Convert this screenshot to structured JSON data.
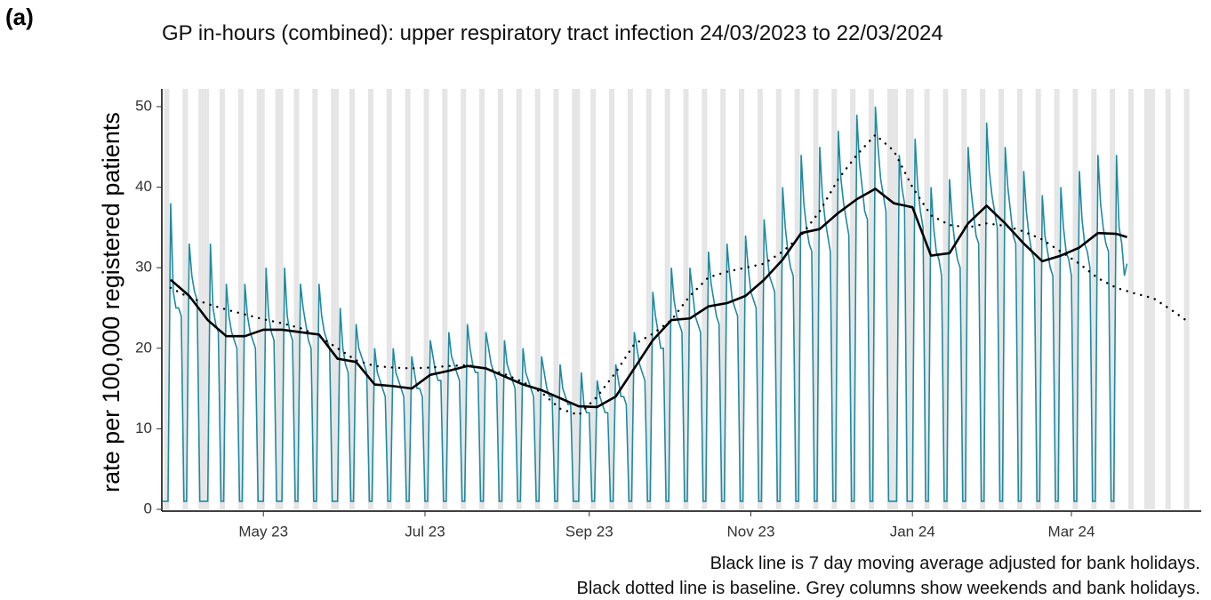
{
  "chart_data": {
    "type": "line",
    "panel_label": "(a)",
    "title": "GP in-hours (combined): upper respiratory tract infection 24/03/2023 to 22/03/2024",
    "y_label": "rate per 100,000 registered patients",
    "notes": [
      "Black line is 7 day moving average adjusted for bank holidays.",
      "Black dotted line is baseline. Grey columns show weekends and bank holidays."
    ],
    "xlim": [
      "2023-03-24",
      "2024-04-19"
    ],
    "xticks": [
      {
        "value": "2023-05-01",
        "label": "May 23"
      },
      {
        "value": "2023-07-01",
        "label": "Jul 23"
      },
      {
        "value": "2023-09-01",
        "label": "Sep 23"
      },
      {
        "value": "2023-11-01",
        "label": "Nov 23"
      },
      {
        "value": "2024-01-01",
        "label": "Jan 24"
      },
      {
        "value": "2024-03-01",
        "label": "Mar 24"
      }
    ],
    "ylim": [
      0,
      52.2
    ],
    "yticks": [
      0,
      10,
      20,
      30,
      40,
      50
    ],
    "shade_weekends": true,
    "shade_color": "#e5e5e5",
    "bank_holidays": [
      "2023-04-07",
      "2023-04-10",
      "2023-05-01",
      "2023-05-08",
      "2023-05-29",
      "2023-08-28",
      "2023-12-25",
      "2023-12-26",
      "2024-01-01",
      "2024-03-29",
      "2024-04-01"
    ],
    "x": [
      "2023-03-24",
      "2023-03-25",
      "2023-03-26",
      "2023-03-27",
      "2023-03-28",
      "2023-03-29",
      "2023-03-30",
      "2023-03-31",
      "2023-04-01",
      "2023-04-02",
      "2023-04-03",
      "2023-04-04",
      "2023-04-05",
      "2023-04-06",
      "2023-04-07",
      "2023-04-08",
      "2023-04-09",
      "2023-04-10",
      "2023-04-11",
      "2023-04-12",
      "2023-04-13",
      "2023-04-14",
      "2023-04-15",
      "2023-04-16",
      "2023-04-17",
      "2023-04-18",
      "2023-04-19",
      "2023-04-20",
      "2023-04-21",
      "2023-04-22",
      "2023-04-23",
      "2023-04-24",
      "2023-04-25",
      "2023-04-26",
      "2023-04-27",
      "2023-04-28",
      "2023-04-29",
      "2023-04-30",
      "2023-05-01",
      "2023-05-02",
      "2023-05-03",
      "2023-05-04",
      "2023-05-05",
      "2023-05-06",
      "2023-05-07",
      "2023-05-08",
      "2023-05-09",
      "2023-05-10",
      "2023-05-11",
      "2023-05-12",
      "2023-05-13",
      "2023-05-14",
      "2023-05-15",
      "2023-05-16",
      "2023-05-17",
      "2023-05-18",
      "2023-05-19",
      "2023-05-20",
      "2023-05-21",
      "2023-05-22",
      "2023-05-23",
      "2023-05-24",
      "2023-05-25",
      "2023-05-26",
      "2023-05-27",
      "2023-05-28",
      "2023-05-29",
      "2023-05-30",
      "2023-05-31",
      "2023-06-01",
      "2023-06-02",
      "2023-06-03",
      "2023-06-04",
      "2023-06-05",
      "2023-06-06",
      "2023-06-07",
      "2023-06-08",
      "2023-06-09",
      "2023-06-10",
      "2023-06-11",
      "2023-06-12",
      "2023-06-13",
      "2023-06-14",
      "2023-06-15",
      "2023-06-16",
      "2023-06-17",
      "2023-06-18",
      "2023-06-19",
      "2023-06-20",
      "2023-06-21",
      "2023-06-22",
      "2023-06-23",
      "2023-06-24",
      "2023-06-25",
      "2023-06-26",
      "2023-06-27",
      "2023-06-28",
      "2023-06-29",
      "2023-06-30",
      "2023-07-01",
      "2023-07-02",
      "2023-07-03",
      "2023-07-04",
      "2023-07-05",
      "2023-07-06",
      "2023-07-07",
      "2023-07-08",
      "2023-07-09",
      "2023-07-10",
      "2023-07-11",
      "2023-07-12",
      "2023-07-13",
      "2023-07-14",
      "2023-07-15",
      "2023-07-16",
      "2023-07-17",
      "2023-07-18",
      "2023-07-19",
      "2023-07-20",
      "2023-07-21",
      "2023-07-22",
      "2023-07-23",
      "2023-07-24",
      "2023-07-25",
      "2023-07-26",
      "2023-07-27",
      "2023-07-28",
      "2023-07-29",
      "2023-07-30",
      "2023-07-31",
      "2023-08-01",
      "2023-08-02",
      "2023-08-03",
      "2023-08-04",
      "2023-08-05",
      "2023-08-06",
      "2023-08-07",
      "2023-08-08",
      "2023-08-09",
      "2023-08-10",
      "2023-08-11",
      "2023-08-12",
      "2023-08-13",
      "2023-08-14",
      "2023-08-15",
      "2023-08-16",
      "2023-08-17",
      "2023-08-18",
      "2023-08-19",
      "2023-08-20",
      "2023-08-21",
      "2023-08-22",
      "2023-08-23",
      "2023-08-24",
      "2023-08-25",
      "2023-08-26",
      "2023-08-27",
      "2023-08-28",
      "2023-08-29",
      "2023-08-30",
      "2023-08-31",
      "2023-09-01",
      "2023-09-02",
      "2023-09-03",
      "2023-09-04",
      "2023-09-05",
      "2023-09-06",
      "2023-09-07",
      "2023-09-08",
      "2023-09-09",
      "2023-09-10",
      "2023-09-11",
      "2023-09-12",
      "2023-09-13",
      "2023-09-14",
      "2023-09-15",
      "2023-09-16",
      "2023-09-17",
      "2023-09-18",
      "2023-09-19",
      "2023-09-20",
      "2023-09-21",
      "2023-09-22",
      "2023-09-23",
      "2023-09-24",
      "2023-09-25",
      "2023-09-26",
      "2023-09-27",
      "2023-09-28",
      "2023-09-29",
      "2023-09-30",
      "2023-10-01",
      "2023-10-02",
      "2023-10-03",
      "2023-10-04",
      "2023-10-05",
      "2023-10-06",
      "2023-10-07",
      "2023-10-08",
      "2023-10-09",
      "2023-10-10",
      "2023-10-11",
      "2023-10-12",
      "2023-10-13",
      "2023-10-14",
      "2023-10-15",
      "2023-10-16",
      "2023-10-17",
      "2023-10-18",
      "2023-10-19",
      "2023-10-20",
      "2023-10-21",
      "2023-10-22",
      "2023-10-23",
      "2023-10-24",
      "2023-10-25",
      "2023-10-26",
      "2023-10-27",
      "2023-10-28",
      "2023-10-29",
      "2023-10-30",
      "2023-10-31",
      "2023-11-01",
      "2023-11-02",
      "2023-11-03",
      "2023-11-04",
      "2023-11-05",
      "2023-11-06",
      "2023-11-07",
      "2023-11-08",
      "2023-11-09",
      "2023-11-10",
      "2023-11-11",
      "2023-11-12",
      "2023-11-13",
      "2023-11-14",
      "2023-11-15",
      "2023-11-16",
      "2023-11-17",
      "2023-11-18",
      "2023-11-19",
      "2023-11-20",
      "2023-11-21",
      "2023-11-22",
      "2023-11-23",
      "2023-11-24",
      "2023-11-25",
      "2023-11-26",
      "2023-11-27",
      "2023-11-28",
      "2023-11-29",
      "2023-11-30",
      "2023-12-01",
      "2023-12-02",
      "2023-12-03",
      "2023-12-04",
      "2023-12-05",
      "2023-12-06",
      "2023-12-07",
      "2023-12-08",
      "2023-12-09",
      "2023-12-10",
      "2023-12-11",
      "2023-12-12",
      "2023-12-13",
      "2023-12-14",
      "2023-12-15",
      "2023-12-16",
      "2023-12-17",
      "2023-12-18",
      "2023-12-19",
      "2023-12-20",
      "2023-12-21",
      "2023-12-22",
      "2023-12-23",
      "2023-12-24",
      "2023-12-25",
      "2023-12-26",
      "2023-12-27",
      "2023-12-28",
      "2023-12-29",
      "2023-12-30",
      "2023-12-31",
      "2024-01-01",
      "2024-01-02",
      "2024-01-03",
      "2024-01-04",
      "2024-01-05",
      "2024-01-06",
      "2024-01-07",
      "2024-01-08",
      "2024-01-09",
      "2024-01-10",
      "2024-01-11",
      "2024-01-12",
      "2024-01-13",
      "2024-01-14",
      "2024-01-15",
      "2024-01-16",
      "2024-01-17",
      "2024-01-18",
      "2024-01-19",
      "2024-01-20",
      "2024-01-21",
      "2024-01-22",
      "2024-01-23",
      "2024-01-24",
      "2024-01-25",
      "2024-01-26",
      "2024-01-27",
      "2024-01-28",
      "2024-01-29",
      "2024-01-30",
      "2024-01-31",
      "2024-02-01",
      "2024-02-02",
      "2024-02-03",
      "2024-02-04",
      "2024-02-05",
      "2024-02-06",
      "2024-02-07",
      "2024-02-08",
      "2024-02-09",
      "2024-02-10",
      "2024-02-11",
      "2024-02-12",
      "2024-02-13",
      "2024-02-14",
      "2024-02-15",
      "2024-02-16",
      "2024-02-17",
      "2024-02-18",
      "2024-02-19",
      "2024-02-20",
      "2024-02-21",
      "2024-02-22",
      "2024-02-23",
      "2024-02-24",
      "2024-02-25",
      "2024-02-26",
      "2024-02-27",
      "2024-02-28",
      "2024-02-29",
      "2024-03-01",
      "2024-03-02",
      "2024-03-03",
      "2024-03-04",
      "2024-03-05",
      "2024-03-06",
      "2024-03-07",
      "2024-03-08",
      "2024-03-09",
      "2024-03-10",
      "2024-03-11",
      "2024-03-12",
      "2024-03-13",
      "2024-03-14",
      "2024-03-15",
      "2024-03-16",
      "2024-03-17",
      "2024-03-18",
      "2024-03-19",
      "2024-03-20",
      "2024-03-21",
      "2024-03-22"
    ],
    "series": [
      {
        "color": "#1f8aa2",
        "style": "thin",
        "values": [
          1,
          1,
          1,
          38,
          27,
          25,
          25,
          24,
          1,
          1,
          33,
          29,
          27,
          26,
          1,
          1,
          1,
          1,
          33,
          25,
          23,
          22,
          1,
          1,
          28,
          24,
          22,
          21,
          20,
          1,
          1,
          28,
          24,
          22,
          21,
          20,
          1,
          1,
          1,
          30,
          24,
          22,
          21,
          1,
          1,
          1,
          30,
          24,
          22,
          21,
          1,
          1,
          28,
          25,
          23,
          21,
          20,
          1,
          1,
          28,
          24,
          22,
          21,
          20,
          1,
          1,
          1,
          25,
          20,
          18,
          17,
          1,
          1,
          23,
          20,
          19,
          18,
          17,
          1,
          1,
          20,
          17,
          16,
          15,
          14,
          1,
          1,
          20,
          17,
          16,
          15,
          14,
          1,
          1,
          19,
          17,
          15,
          15,
          14,
          1,
          1,
          21,
          19,
          17,
          16,
          16,
          1,
          1,
          22,
          19,
          18,
          17,
          16,
          1,
          1,
          23,
          20,
          18,
          17,
          17,
          1,
          1,
          22,
          20,
          18,
          17,
          16,
          1,
          1,
          21,
          18,
          17,
          16,
          15,
          1,
          1,
          20,
          17,
          16,
          15,
          14,
          1,
          1,
          19,
          17,
          15,
          14,
          14,
          1,
          1,
          18,
          15,
          14,
          13,
          13,
          1,
          1,
          1,
          17,
          13,
          12,
          12,
          1,
          1,
          16,
          14,
          13,
          12,
          12,
          1,
          1,
          18,
          16,
          14,
          14,
          13,
          1,
          1,
          22,
          20,
          18,
          17,
          16,
          1,
          1,
          27,
          24,
          22,
          20,
          20,
          1,
          1,
          30,
          26,
          24,
          23,
          22,
          1,
          1,
          30,
          27,
          24,
          23,
          22,
          1,
          1,
          32,
          28,
          26,
          24,
          23,
          1,
          1,
          33,
          29,
          26,
          25,
          24,
          1,
          1,
          34,
          30,
          27,
          26,
          25,
          1,
          1,
          36,
          32,
          29,
          28,
          27,
          1,
          1,
          40,
          35,
          32,
          30,
          29,
          1,
          1,
          44,
          38,
          35,
          33,
          32,
          1,
          1,
          45,
          39,
          36,
          34,
          32,
          1,
          1,
          47,
          41,
          38,
          36,
          34,
          1,
          1,
          49,
          43,
          40,
          37,
          36,
          1,
          1,
          50,
          45,
          41,
          39,
          37,
          1,
          1,
          1,
          1,
          44,
          40,
          38,
          1,
          1,
          1,
          46,
          40,
          37,
          35,
          1,
          1,
          40,
          35,
          32,
          31,
          29,
          1,
          1,
          41,
          36,
          33,
          31,
          30,
          1,
          1,
          45,
          40,
          37,
          34,
          33,
          1,
          1,
          48,
          42,
          39,
          37,
          35,
          1,
          1,
          45,
          40,
          37,
          34,
          33,
          1,
          1,
          42,
          37,
          34,
          32,
          31,
          1,
          1,
          39,
          34,
          32,
          30,
          29,
          1,
          1,
          40,
          35,
          32,
          31,
          29,
          1,
          1,
          42,
          36,
          33,
          32,
          30,
          1,
          1,
          44,
          38,
          35,
          33,
          32,
          1,
          1,
          44,
          35,
          33,
          29,
          30.5
        ]
      },
      {
        "color": "#000000",
        "style": "solid",
        "x": [
          "2023-03-27",
          "2023-04-03",
          "2023-04-10",
          "2023-04-17",
          "2023-04-24",
          "2023-05-01",
          "2023-05-08",
          "2023-05-15",
          "2023-05-22",
          "2023-05-29",
          "2023-06-05",
          "2023-06-12",
          "2023-06-19",
          "2023-06-26",
          "2023-07-03",
          "2023-07-10",
          "2023-07-17",
          "2023-07-24",
          "2023-07-31",
          "2023-08-07",
          "2023-08-14",
          "2023-08-21",
          "2023-08-28",
          "2023-09-04",
          "2023-09-11",
          "2023-09-18",
          "2023-09-25",
          "2023-10-02",
          "2023-10-09",
          "2023-10-16",
          "2023-10-23",
          "2023-10-30",
          "2023-11-06",
          "2023-11-13",
          "2023-11-20",
          "2023-11-27",
          "2023-12-04",
          "2023-12-11",
          "2023-12-18",
          "2023-12-25",
          "2024-01-01",
          "2024-01-08",
          "2024-01-15",
          "2024-01-22",
          "2024-01-29",
          "2024-02-05",
          "2024-02-12",
          "2024-02-19",
          "2024-02-26",
          "2024-03-04",
          "2024-03-11",
          "2024-03-18",
          "2024-03-22"
        ],
        "values": [
          28.5,
          26.5,
          23.5,
          21.5,
          21.5,
          22.3,
          22.3,
          22,
          21.7,
          18.7,
          18.3,
          15.5,
          15.3,
          15,
          16.7,
          17.2,
          17.8,
          17.5,
          16.5,
          15.5,
          14.8,
          13.8,
          12.8,
          12.7,
          14,
          17.5,
          21,
          23.5,
          23.7,
          25.2,
          25.6,
          26.5,
          28.5,
          31,
          34.3,
          34.8,
          36.8,
          38.5,
          39.8,
          38,
          37.5,
          31.5,
          31.8,
          35.5,
          37.7,
          35.5,
          33,
          30.8,
          31.5,
          32.5,
          34.3,
          34.2,
          33.8
        ]
      },
      {
        "color": "#000000",
        "style": "dotted",
        "x": [
          "2023-03-27",
          "2023-04-03",
          "2023-04-10",
          "2023-04-17",
          "2023-04-24",
          "2023-05-01",
          "2023-05-08",
          "2023-05-15",
          "2023-05-22",
          "2023-05-29",
          "2023-06-05",
          "2023-06-12",
          "2023-06-19",
          "2023-06-26",
          "2023-07-03",
          "2023-07-10",
          "2023-07-17",
          "2023-07-24",
          "2023-07-31",
          "2023-08-07",
          "2023-08-14",
          "2023-08-21",
          "2023-08-28",
          "2023-09-04",
          "2023-09-11",
          "2023-09-18",
          "2023-09-25",
          "2023-10-02",
          "2023-10-09",
          "2023-10-16",
          "2023-10-23",
          "2023-10-30",
          "2023-11-06",
          "2023-11-13",
          "2023-11-20",
          "2023-11-27",
          "2023-12-04",
          "2023-12-11",
          "2023-12-18",
          "2023-12-25",
          "2024-01-01",
          "2024-01-08",
          "2024-01-15",
          "2024-01-22",
          "2024-01-29",
          "2024-02-05",
          "2024-02-12",
          "2024-02-19",
          "2024-02-26",
          "2024-03-04",
          "2024-03-11",
          "2024-03-18",
          "2024-03-25",
          "2024-04-01",
          "2024-04-08",
          "2024-04-14"
        ],
        "values": [
          27.5,
          26.3,
          25.5,
          24.8,
          24.2,
          23.6,
          23.1,
          22.5,
          21.5,
          20,
          18.5,
          17.8,
          17.6,
          17.5,
          17.6,
          17.8,
          17.9,
          17.5,
          16.8,
          15.8,
          14.5,
          12.5,
          11.7,
          14,
          17,
          20.5,
          21.8,
          23.5,
          26.5,
          28.8,
          29.5,
          30,
          30.5,
          32,
          34,
          37,
          41,
          44,
          46.5,
          44.5,
          40,
          36.5,
          35.3,
          35,
          35.5,
          35.2,
          34.5,
          33.5,
          32,
          30.5,
          28.7,
          27.5,
          26.8,
          26.2,
          24.7,
          23.3
        ]
      }
    ]
  }
}
